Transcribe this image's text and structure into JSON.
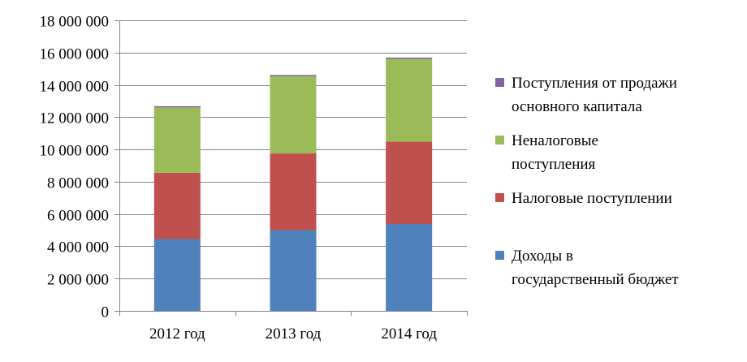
{
  "chart_data": {
    "type": "bar",
    "stacked": true,
    "categories": [
      "2012 год",
      "2013 год",
      "2014 год"
    ],
    "series": [
      {
        "name": "Доходы в государственный бюджет",
        "legend_lines": [
          "Доходы в",
          "государственный бюджет"
        ],
        "color": "#4F81BD",
        "values": [
          4450000,
          5000000,
          5380000
        ]
      },
      {
        "name": "Налоговые поступлении",
        "legend_lines": [
          "Налоговые поступлении"
        ],
        "color": "#C0504D",
        "values": [
          4100000,
          4750000,
          5100000
        ]
      },
      {
        "name": "Неналоговые поступления",
        "legend_lines": [
          "Неналоговые",
          "поступления"
        ],
        "color": "#9BBB59",
        "values": [
          4050000,
          4780000,
          5130000
        ]
      },
      {
        "name": "Поступления от продажи основного капитала",
        "legend_lines": [
          "Поступления от продажи",
          "основного капитала"
        ],
        "color": "#8064A2",
        "values": [
          80000,
          80000,
          80000
        ]
      }
    ],
    "ylim": [
      0,
      18000000
    ],
    "yticks": [
      0,
      2000000,
      4000000,
      6000000,
      8000000,
      10000000,
      12000000,
      14000000,
      16000000,
      18000000
    ],
    "ytick_labels": [
      "0",
      "2 000 000",
      "4 000 000",
      "6 000 000",
      "8 000 000",
      "10 000 000",
      "12 000 000",
      "14 000 000",
      "16 000 000",
      "18 000 000"
    ],
    "grid": true,
    "legend_position": "right"
  }
}
